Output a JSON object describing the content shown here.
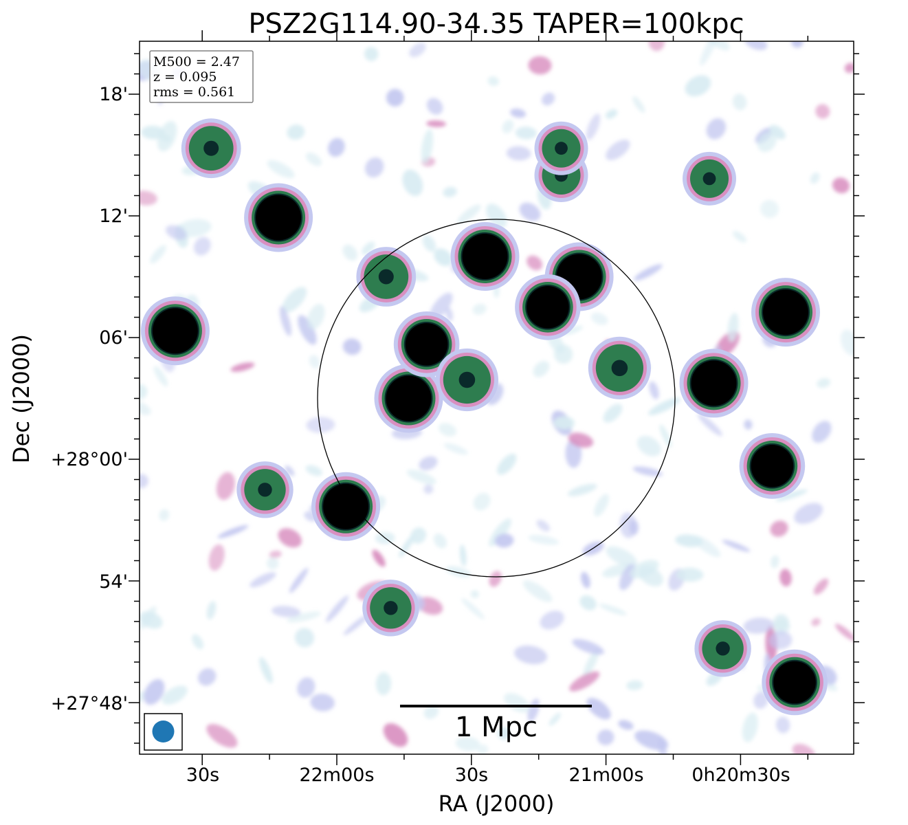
{
  "chart_data": {
    "type": "heatmap",
    "title": "PSZ2G114.90-34.35 TAPER=100kpc",
    "xlabel": "RA (J2000)",
    "ylabel": "Dec (J2000)",
    "x_ticks": [
      "30s",
      "22m00s",
      "30s",
      "21m00s",
      "0h20m30s"
    ],
    "y_ticks": [
      "+27°48'",
      "54'",
      "+28°00'",
      "06'",
      "12'",
      "18'"
    ],
    "info_box": [
      "M500 = 2.47",
      "z = 0.095",
      "rms = 0.561"
    ],
    "scale_bar_label": "1 Mpc",
    "beam_color": "#1f77b4",
    "colormap": [
      "#ffffff",
      "#d8ecf2",
      "#c4c8f0",
      "#d98fc0",
      "#2e7d4f",
      "#0a2a2a",
      "#000000"
    ],
    "sources": [
      {
        "ra": "00h22m13s",
        "dec": "+28d11m55s",
        "strength": 1.0
      },
      {
        "ra": "00h22m36s",
        "dec": "+28d06m20s",
        "strength": 1.0
      },
      {
        "ra": "00h22m28s",
        "dec": "+28d15m20s",
        "strength": 0.7
      },
      {
        "ra": "00h21m58s",
        "dec": "+27d57m40s",
        "strength": 1.0
      },
      {
        "ra": "00h22m16s",
        "dec": "+27d58m30s",
        "strength": 0.6
      },
      {
        "ra": "00h21m44s",
        "dec": "+28d03m00s",
        "strength": 1.0
      },
      {
        "ra": "00h21m40s",
        "dec": "+28d05m40s",
        "strength": 0.9
      },
      {
        "ra": "00h21m31s",
        "dec": "+28d03m55s",
        "strength": 0.8
      },
      {
        "ra": "00h21m27s",
        "dec": "+28d10m00s",
        "strength": 1.0
      },
      {
        "ra": "00h21m06s",
        "dec": "+28d09m00s",
        "strength": 1.0
      },
      {
        "ra": "00h21m13s",
        "dec": "+28d07m30s",
        "strength": 0.9
      },
      {
        "ra": "00h21m49s",
        "dec": "+28d09m00s",
        "strength": 0.7
      },
      {
        "ra": "00h20m57s",
        "dec": "+28d04m30s",
        "strength": 0.8
      },
      {
        "ra": "00h20m36s",
        "dec": "+28d03m45s",
        "strength": 1.0
      },
      {
        "ra": "00h20m20s",
        "dec": "+28d07m15s",
        "strength": 1.0
      },
      {
        "ra": "00h20m23s",
        "dec": "+27d59m40s",
        "strength": 0.9
      },
      {
        "ra": "00h21m48s",
        "dec": "+27d52m40s",
        "strength": 0.6
      },
      {
        "ra": "00h20m18s",
        "dec": "+27d49m00s",
        "strength": 0.9
      },
      {
        "ra": "00h20m34s",
        "dec": "+27d50m40s",
        "strength": 0.6
      },
      {
        "ra": "00h21m10s",
        "dec": "+28d14m00s",
        "strength": 0.5
      },
      {
        "ra": "00h21m10s",
        "dec": "+28d15m20s",
        "strength": 0.5
      },
      {
        "ra": "00h20m37s",
        "dec": "+28d13m50s",
        "strength": 0.5
      }
    ]
  }
}
